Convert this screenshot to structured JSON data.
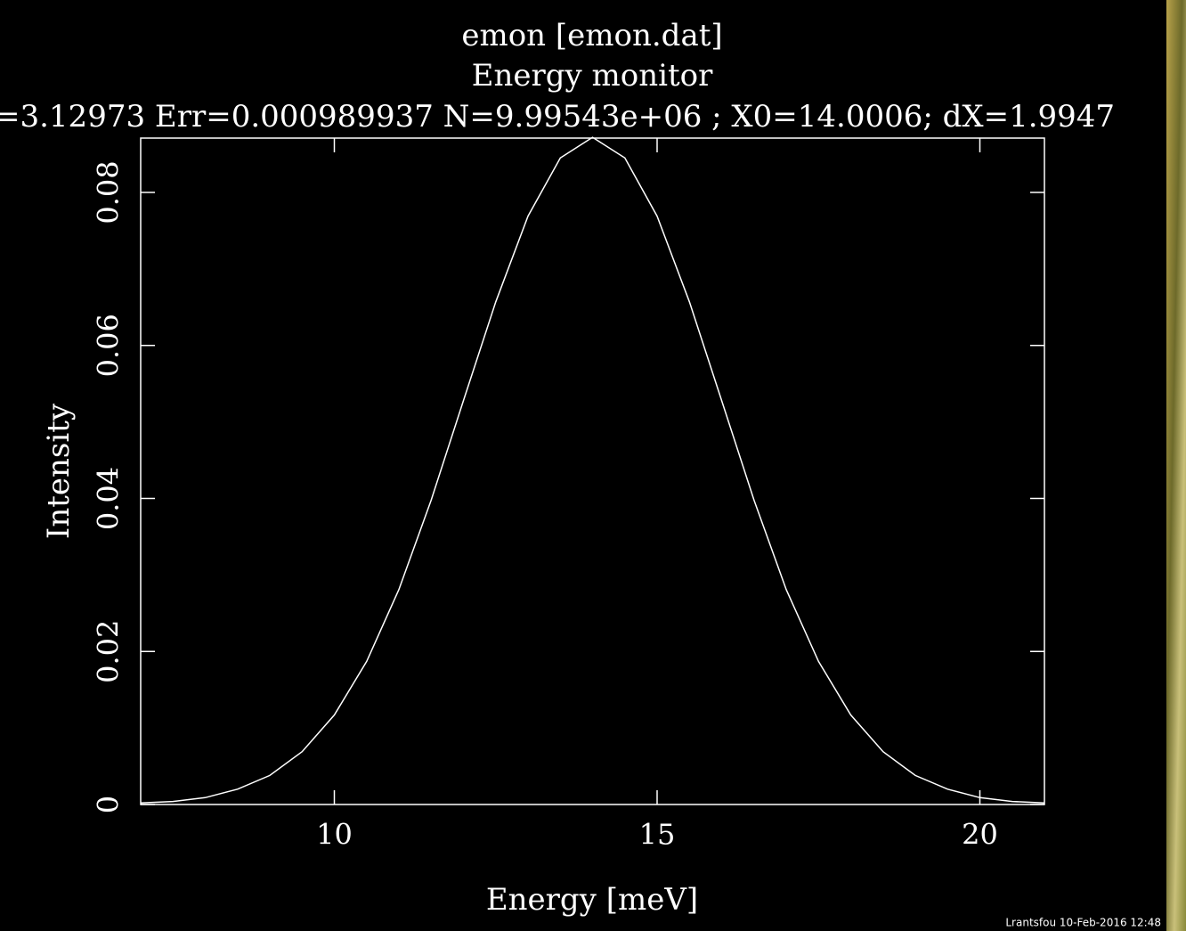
{
  "chart_data": {
    "type": "line",
    "title": "emon [emon.dat]",
    "subtitle": "Energy monitor",
    "annotation": "=3.12973 Err=0.000989937 N=9.99543e+06 ; X0=14.0006; dX=1.9947",
    "footer": "Lrantsfou 10-Feb-2016 12:48",
    "x_label": "Energy [meV]",
    "y_label": "Intensity",
    "x": [
      7,
      7.5,
      8,
      8.5,
      9,
      9.5,
      10,
      10.5,
      11,
      11.5,
      12,
      12.5,
      13,
      13.5,
      14,
      14.5,
      15,
      15.5,
      16,
      16.5,
      17,
      17.5,
      18,
      18.5,
      19,
      19.5,
      20,
      20.5,
      21
    ],
    "values": [
      0.0002,
      0.0004,
      0.0009,
      0.002,
      0.0038,
      0.0069,
      0.0117,
      0.0187,
      0.0281,
      0.0398,
      0.0528,
      0.0657,
      0.0769,
      0.0845,
      0.0872,
      0.0845,
      0.0769,
      0.0657,
      0.0528,
      0.0398,
      0.0281,
      0.0187,
      0.0117,
      0.0069,
      0.0038,
      0.002,
      0.0009,
      0.0004,
      0.0002
    ],
    "color": "#ffffff",
    "xlim": [
      7,
      21
    ],
    "ylim": [
      0,
      0.0871
    ],
    "xticks": [
      10,
      15,
      20
    ],
    "yticks": [
      0,
      0.02,
      0.04,
      0.06,
      0.08
    ]
  }
}
